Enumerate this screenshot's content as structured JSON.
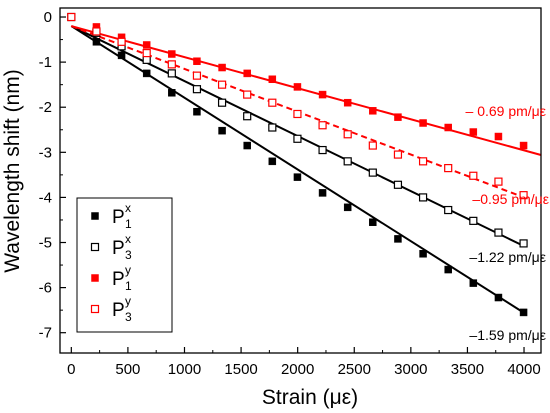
{
  "chart_data": {
    "type": "scatter",
    "xlabel": "Strain (με)",
    "ylabel": "Wavelength shift (nm)",
    "xlim": [
      -100,
      4150
    ],
    "ylim": [
      -7.45,
      0.2
    ],
    "x_ticks": [
      0,
      500,
      1000,
      1500,
      2000,
      2500,
      3000,
      3500,
      4000
    ],
    "y_ticks": [
      0,
      -1,
      -2,
      -3,
      -4,
      -5,
      -6,
      -7
    ],
    "grid": false,
    "legend_position": "bottom-left",
    "x": [
      0,
      222,
      444,
      666,
      888,
      1110,
      1332,
      1554,
      1776,
      1998,
      2220,
      2442,
      2664,
      2886,
      3108,
      3330,
      3552,
      3774,
      3996
    ],
    "series": [
      {
        "name": "P1x",
        "legend_main": "P",
        "legend_sub": "1",
        "legend_sup": "x",
        "color": "#000000",
        "marker": "filled-square",
        "line_style": "solid",
        "slope_label": "–1.59 pm/με",
        "values": [
          0,
          -0.55,
          -0.85,
          -1.25,
          -1.68,
          -2.1,
          -2.52,
          -2.85,
          -3.2,
          -3.55,
          -3.9,
          -4.22,
          -4.55,
          -4.92,
          -5.25,
          -5.6,
          -5.9,
          -6.22,
          -6.55
        ],
        "fit": [
          [
            0,
            -0.2
          ],
          [
            4000,
            -6.56
          ]
        ]
      },
      {
        "name": "P3x",
        "legend_main": "P",
        "legend_sub": "3",
        "legend_sup": "x",
        "color": "#000000",
        "marker": "open-square",
        "line_style": "solid",
        "slope_label": "–1.22 pm/με",
        "values": [
          0,
          -0.35,
          -0.65,
          -0.95,
          -1.25,
          -1.6,
          -1.9,
          -2.2,
          -2.45,
          -2.7,
          -2.95,
          -3.2,
          -3.45,
          -3.72,
          -4.0,
          -4.28,
          -4.52,
          -4.78,
          -5.02
        ],
        "fit": [
          [
            0,
            -0.2
          ],
          [
            4000,
            -5.08
          ]
        ]
      },
      {
        "name": "P1y",
        "legend_main": "P",
        "legend_sub": "1",
        "legend_sup": "y",
        "color": "#ff0000",
        "marker": "filled-square",
        "line_style": "solid",
        "slope_label": "– 0.69 pm/με",
        "values": [
          0,
          -0.22,
          -0.45,
          -0.62,
          -0.82,
          -0.98,
          -1.12,
          -1.25,
          -1.38,
          -1.55,
          -1.72,
          -1.9,
          -2.08,
          -2.22,
          -2.35,
          -2.45,
          -2.55,
          -2.65,
          -2.85
        ],
        "fit": [
          [
            0,
            -0.2
          ],
          [
            4150,
            -3.06
          ]
        ]
      },
      {
        "name": "P3y",
        "legend_main": "P",
        "legend_sub": "3",
        "legend_sup": "y",
        "color": "#ff0000",
        "marker": "open-square",
        "line_style": "dashed",
        "slope_label": "–0.95 pm/με",
        "values": [
          0,
          -0.32,
          -0.55,
          -0.8,
          -1.05,
          -1.3,
          -1.5,
          -1.72,
          -1.9,
          -2.15,
          -2.4,
          -2.6,
          -2.85,
          -3.05,
          -3.2,
          -3.35,
          -3.52,
          -3.65,
          -3.95
        ],
        "fit": [
          [
            0,
            -0.2
          ],
          [
            4000,
            -4.0
          ]
        ]
      }
    ]
  }
}
